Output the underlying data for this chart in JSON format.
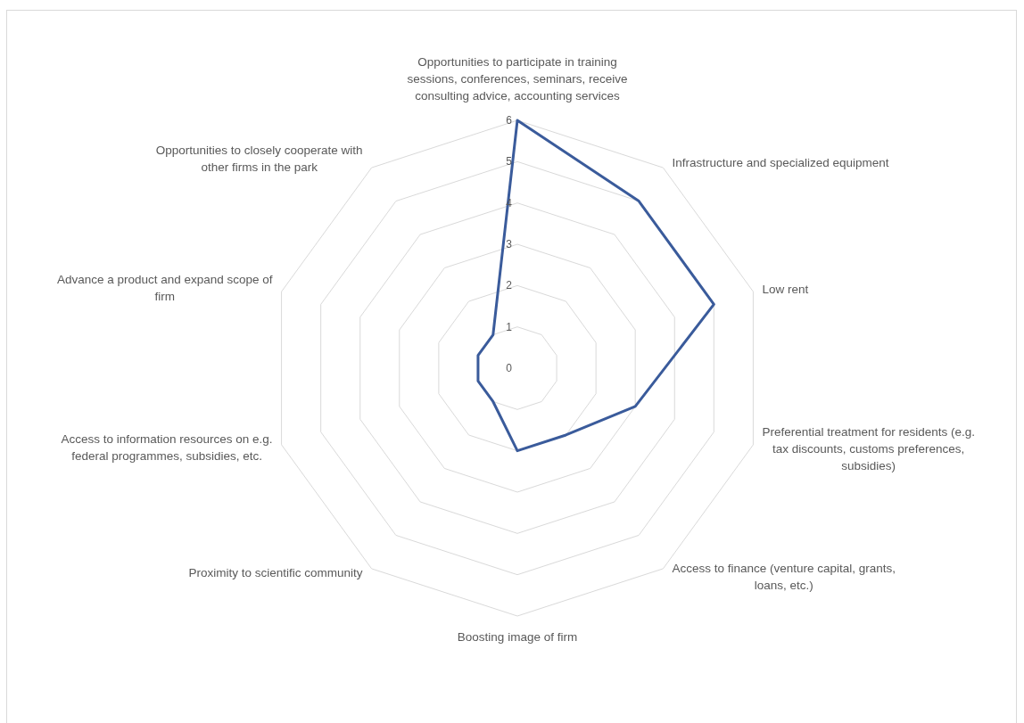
{
  "chart_data": {
    "type": "radar",
    "categories": [
      "Opportunities to participate in training sessions, conferences, seminars, receive consulting advice, accounting services",
      "Infrastructure and specialized equipment",
      "Low rent",
      "Preferential treatment for residents (e.g. tax discounts, customs preferences, subsidies)",
      "Access to finance (venture capital, grants, loans, etc.)",
      "Boosting image of firm",
      "Proximity to scientific community",
      "Access to information resources on e.g. federal programmes, subsidies, etc.",
      "Advance a product and expand scope of firm",
      "Opportunities to closely cooperate with other firms in the park"
    ],
    "series": [
      {
        "color": "#3a5b9b",
        "values": [
          6,
          5,
          5,
          3,
          2,
          2,
          1,
          1,
          1,
          1
        ]
      }
    ],
    "ylim": [
      0,
      6
    ],
    "yticks": [
      0,
      1,
      2,
      3,
      4,
      5,
      6
    ],
    "grid": true
  }
}
